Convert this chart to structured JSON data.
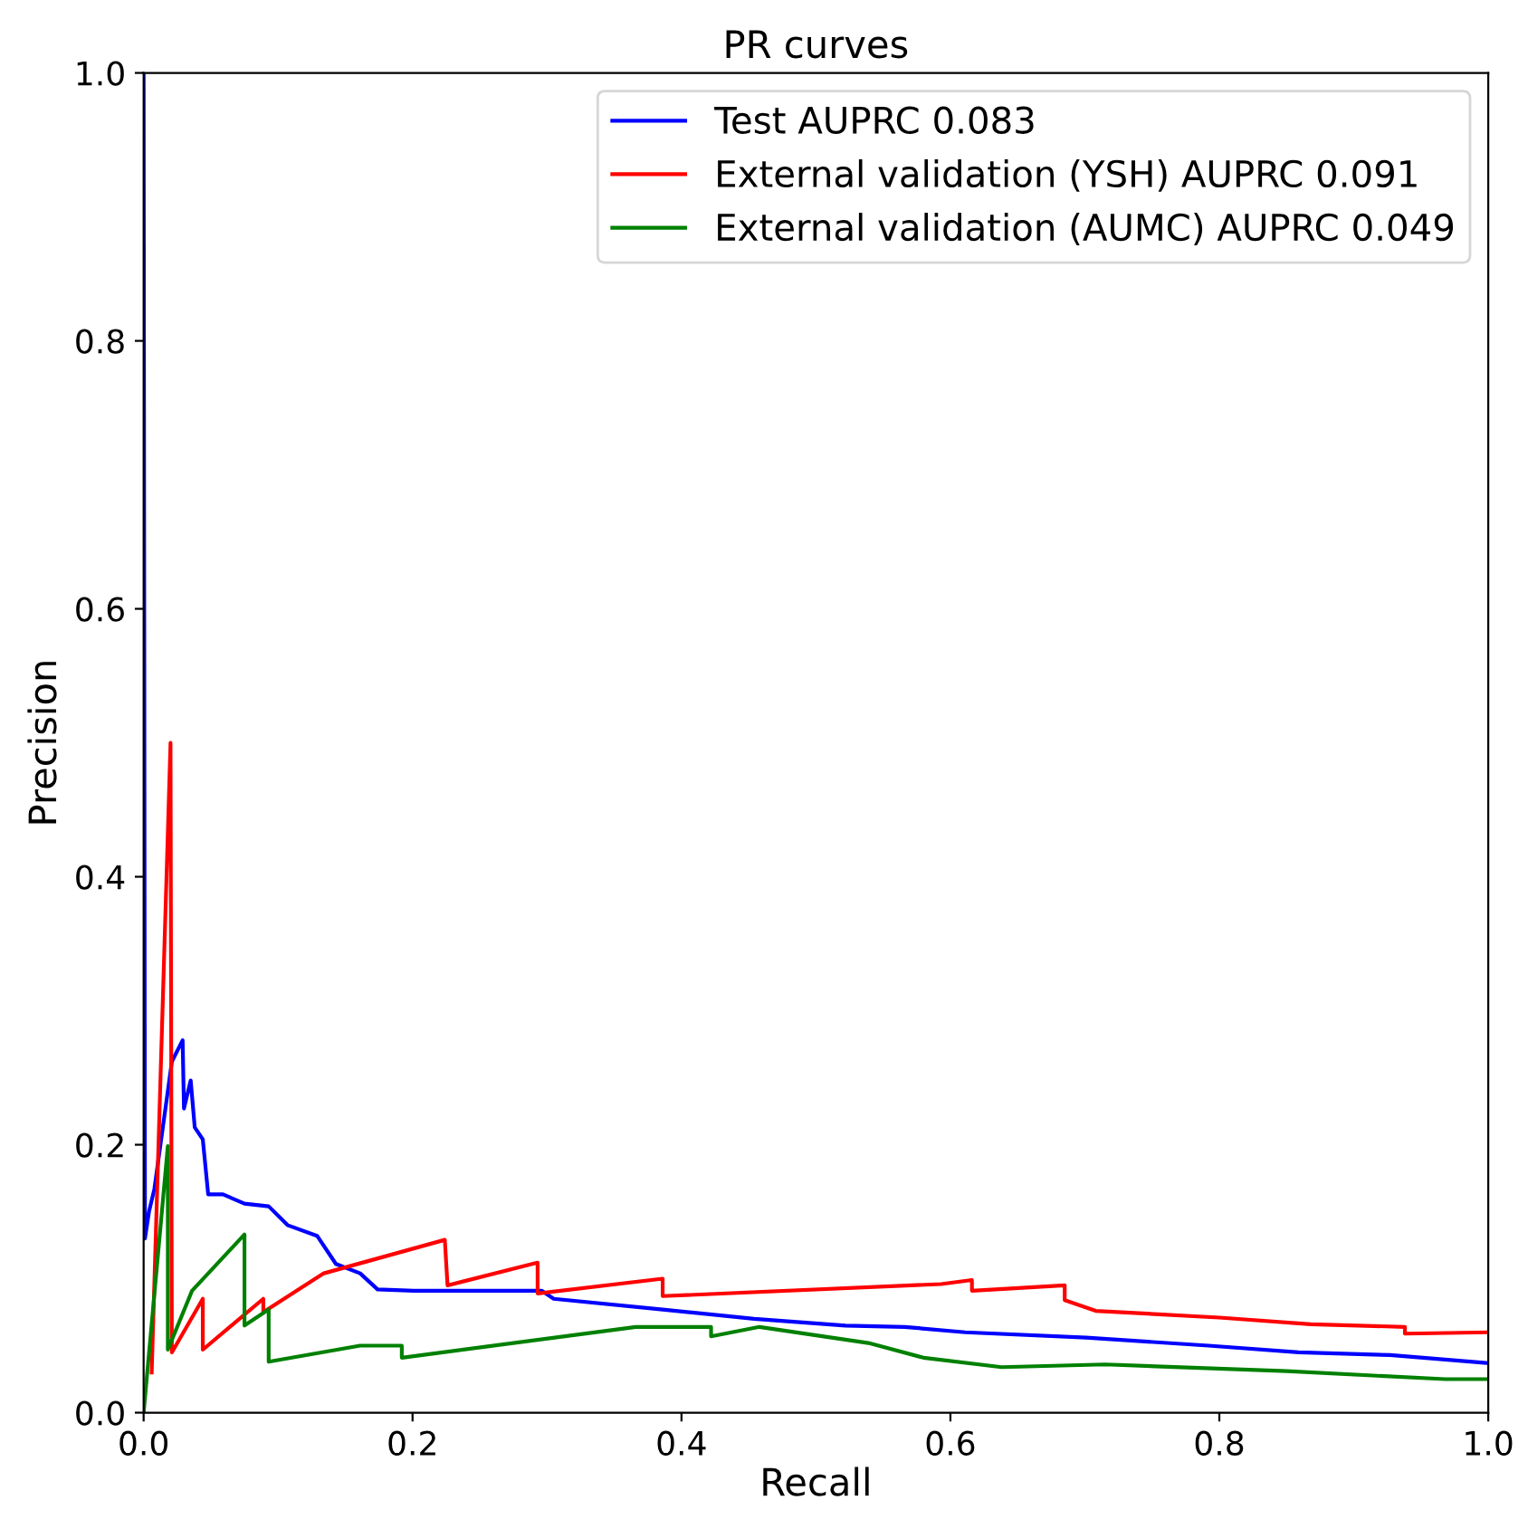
{
  "chart_data": {
    "type": "line",
    "title": "PR curves",
    "xlabel": "Recall",
    "ylabel": "Precision",
    "xlim": [
      0,
      1
    ],
    "ylim": [
      0,
      1
    ],
    "xticks": [
      {
        "value": 0,
        "label": "0.0"
      },
      0.2,
      0.4,
      0.6,
      0.8,
      {
        "value": 1,
        "label": "1.0"
      }
    ],
    "yticks": [
      {
        "value": 0,
        "label": "0.0"
      },
      0.2,
      0.4,
      0.6,
      0.8,
      {
        "value": 1,
        "label": "1.0"
      }
    ],
    "grid": false,
    "legend": "top right",
    "marker": "none",
    "line_style": "solid",
    "series": [
      {
        "name": "Test AUPRC 0.083",
        "color": "#0000ff",
        "x": [
          0,
          0.001,
          0.004,
          0.008,
          0.021,
          0.029,
          0.03,
          0.035,
          0.038,
          0.044,
          0.048,
          0.059,
          0.075,
          0.093,
          0.107,
          0.129,
          0.143,
          0.161,
          0.174,
          0.201,
          0.296,
          0.305,
          0.386,
          0.454,
          0.522,
          0.566,
          0.611,
          0.701,
          0.792,
          0.859,
          0.927,
          1.0
        ],
        "values": [
          1.0,
          0.13,
          0.15,
          0.167,
          0.262,
          0.278,
          0.227,
          0.248,
          0.213,
          0.204,
          0.163,
          0.163,
          0.156,
          0.154,
          0.14,
          0.132,
          0.111,
          0.104,
          0.092,
          0.091,
          0.091,
          0.085,
          0.077,
          0.07,
          0.065,
          0.064,
          0.06,
          0.056,
          0.05,
          0.045,
          0.043,
          0.037
        ]
      },
      {
        "name": "External validation (YSH) AUPRC 0.091",
        "color": "#ff0000",
        "x": [
          0.006,
          0.02,
          0.021,
          0.044,
          0.044,
          0.089,
          0.089,
          0.134,
          0.224,
          0.226,
          0.293,
          0.293,
          0.386,
          0.386,
          0.593,
          0.616,
          0.616,
          0.685,
          0.685,
          0.708,
          0.8,
          0.868,
          0.938,
          0.938,
          1.0
        ],
        "values": [
          0.03,
          0.5,
          0.045,
          0.085,
          0.047,
          0.085,
          0.075,
          0.104,
          0.129,
          0.095,
          0.112,
          0.089,
          0.1,
          0.087,
          0.096,
          0.099,
          0.091,
          0.095,
          0.084,
          0.076,
          0.071,
          0.066,
          0.064,
          0.059,
          0.06
        ]
      },
      {
        "name": "External validation (AUMC) AUPRC 0.049",
        "color": "#008000",
        "x": [
          0,
          0.018,
          0.018,
          0.036,
          0.075,
          0.075,
          0.093,
          0.093,
          0.161,
          0.192,
          0.192,
          0.366,
          0.422,
          0.422,
          0.458,
          0.539,
          0.58,
          0.638,
          0.715,
          0.85,
          0.968,
          1.0
        ],
        "values": [
          0.0,
          0.199,
          0.047,
          0.091,
          0.133,
          0.065,
          0.077,
          0.038,
          0.05,
          0.05,
          0.041,
          0.064,
          0.064,
          0.057,
          0.064,
          0.052,
          0.041,
          0.034,
          0.036,
          0.031,
          0.025,
          0.025
        ]
      }
    ]
  }
}
